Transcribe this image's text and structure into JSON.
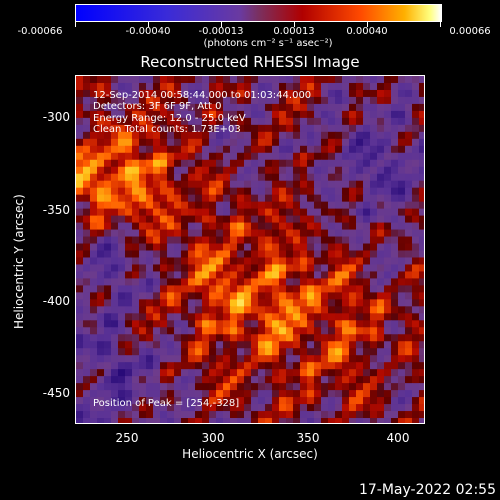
{
  "colorbar": {
    "ticks": [
      "-0.00066",
      "-0.00040",
      "-0.00013",
      "0.00013",
      "0.00040",
      "0.00066"
    ],
    "units": "(photons cm⁻² s⁻¹ asec⁻²)"
  },
  "chart_data": {
    "type": "heatmap",
    "title": "Reconstructed RHESSI Image",
    "xlabel": "Heliocentric X (arcsec)",
    "ylabel": "Heliocentric Y (arcsec)",
    "xlim": [
      222,
      412
    ],
    "ylim": [
      -470,
      -280
    ],
    "x_ticks": [
      "250",
      "300",
      "350",
      "400"
    ],
    "y_ticks": [
      "-300",
      "-350",
      "-400",
      "-450"
    ],
    "colormap": "blue-purple-red-yellow-white",
    "value_range": [
      -0.00066,
      0.00066
    ],
    "annotations": {
      "time": "12-Sep-2014 00:58:44.000 to 01:03:44.000",
      "detectors": "Detectors: 3F 6F 9F, Att 0",
      "energy": "Energy Range: 12.0 - 25.0 keV",
      "method": "Clean     Total counts: 1.73E+03",
      "peak": "Position of Peak = [254,-328]"
    }
  },
  "footer": "17-May-2022 02:55"
}
